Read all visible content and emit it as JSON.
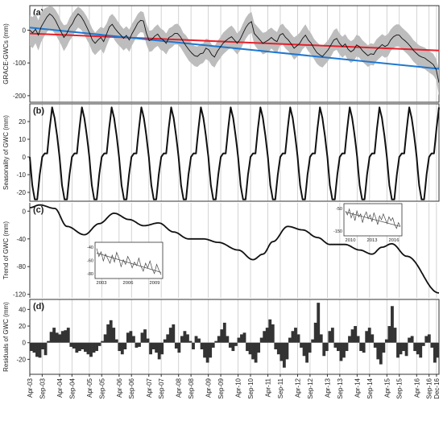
{
  "colors": {
    "grid": "#c8c8c8",
    "frame": "#333333",
    "ci_band": "#bdbdbd",
    "observed": "#111111",
    "red_trend": "#e8202a",
    "blue_trend": "#1f78d1",
    "bars": "#333333"
  },
  "x_axis": {
    "tick_labels": [
      "Apr-03",
      "Sep-03",
      "Apr-04",
      "Sep-04",
      "Apr-05",
      "Sep-05",
      "Apr-06",
      "Sep-06",
      "Apr-07",
      "Sep-07",
      "Apr-08",
      "Sep-08",
      "Apr-09",
      "Sep-09",
      "Apr-10",
      "Sep-10",
      "Apr-11",
      "Sep-11",
      "Apr-12",
      "Sep-12",
      "Apr-13",
      "Sep-13",
      "Apr-14",
      "Sep-14",
      "Apr-15",
      "Sep-15",
      "Apr-16",
      "Sep-16",
      "Dec-16"
    ]
  },
  "chart_data": [
    {
      "panel": "(a)",
      "type": "line",
      "ylabel": "GRACE-GWCs (mm)",
      "ylim": [
        -220,
        75
      ],
      "yticks": [
        0,
        -100,
        -200
      ],
      "series": [
        {
          "role": "observed",
          "values": [
            0,
            -8,
            3,
            -15,
            10,
            25,
            40,
            50,
            43,
            30,
            12,
            -5,
            -22,
            -10,
            8,
            20,
            38,
            50,
            42,
            28,
            10,
            -8,
            -30,
            -40,
            -30,
            -22,
            -35,
            -12,
            10,
            18,
            5,
            -6,
            -15,
            -25,
            -16,
            -30,
            -10,
            5,
            22,
            30,
            28,
            -8,
            -32,
            -28,
            -18,
            -12,
            -24,
            -30,
            -40,
            -22,
            -18,
            -10,
            -10,
            -20,
            -35,
            -48,
            -60,
            -70,
            -78,
            -80,
            -72,
            -70,
            -55,
            -60,
            -75,
            -82,
            -65,
            -52,
            -40,
            -32,
            -25,
            -20,
            -30,
            -40,
            -28,
            -10,
            8,
            20,
            26,
            -10,
            -20,
            -30,
            -40,
            -35,
            -30,
            -22,
            -30,
            -35,
            -15,
            -10,
            -22,
            -30,
            -42,
            -55,
            -48,
            -40,
            -25,
            -15,
            -30,
            -40,
            -55,
            -68,
            -75,
            -80,
            -70,
            -60,
            -45,
            -30,
            -25,
            -40,
            -50,
            -42,
            -58,
            -66,
            -60,
            -45,
            -50,
            -62,
            -70,
            -78,
            -72,
            -74,
            -60,
            -52,
            -44,
            -50,
            -45,
            -30,
            -20,
            -15,
            -15,
            -25,
            -32,
            -40,
            -50,
            -62,
            -70,
            -78,
            -82,
            -85,
            -92,
            -98,
            -105,
            -120,
            -160
          ]
        },
        {
          "role": "ci_upper",
          "values": [
            45,
            40,
            52,
            30,
            55,
            65,
            70,
            73,
            72,
            62,
            48,
            28,
            15,
            18,
            38,
            52,
            63,
            72,
            66,
            56,
            42,
            24,
            5,
            -8,
            2,
            10,
            6,
            20,
            42,
            50,
            40,
            26,
            14,
            4,
            12,
            2,
            20,
            34,
            50,
            58,
            55,
            22,
            -2,
            0,
            10,
            18,
            6,
            0,
            -10,
            6,
            10,
            18,
            20,
            10,
            -8,
            -16,
            -30,
            -40,
            -48,
            -50,
            -42,
            -40,
            -26,
            -28,
            -44,
            -50,
            -34,
            -22,
            -8,
            0,
            8,
            14,
            4,
            -10,
            0,
            20,
            38,
            50,
            56,
            22,
            12,
            2,
            -8,
            -6,
            2,
            8,
            0,
            -6,
            14,
            20,
            8,
            0,
            -12,
            -22,
            -16,
            -8,
            6,
            18,
            2,
            -10,
            -26,
            -36,
            -44,
            -48,
            -40,
            -30,
            -16,
            0,
            6,
            -10,
            -20,
            -12,
            -26,
            -34,
            -28,
            -14,
            -18,
            -30,
            -38,
            -46,
            -40,
            -42,
            -28,
            -20,
            -12,
            -18,
            -12,
            2,
            12,
            18,
            18,
            8,
            0,
            -8,
            -18,
            -30,
            -38,
            -46,
            -50,
            -53,
            -60,
            -66,
            -72,
            -88,
            -120
          ]
        },
        {
          "role": "ci_lower",
          "values": [
            -48,
            -55,
            -40,
            -62,
            -36,
            -20,
            -6,
            4,
            -2,
            -12,
            -28,
            -44,
            -64,
            -50,
            -32,
            -20,
            -4,
            8,
            2,
            -10,
            -28,
            -44,
            -66,
            -76,
            -66,
            -58,
            -72,
            -48,
            -26,
            -18,
            -32,
            -44,
            -52,
            -62,
            -54,
            -66,
            -46,
            -30,
            -14,
            -6,
            -8,
            -42,
            -66,
            -64,
            -54,
            -48,
            -60,
            -64,
            -74,
            -58,
            -52,
            -44,
            -44,
            -52,
            -66,
            -80,
            -94,
            -102,
            -110,
            -112,
            -104,
            -100,
            -88,
            -94,
            -108,
            -114,
            -98,
            -86,
            -74,
            -66,
            -58,
            -54,
            -64,
            -74,
            -62,
            -44,
            -26,
            -14,
            -8,
            -44,
            -56,
            -64,
            -74,
            -70,
            -66,
            -56,
            -64,
            -70,
            -48,
            -44,
            -56,
            -64,
            -76,
            -90,
            -82,
            -74,
            -58,
            -50,
            -64,
            -74,
            -88,
            -102,
            -110,
            -114,
            -104,
            -94,
            -80,
            -64,
            -60,
            -74,
            -84,
            -76,
            -92,
            -100,
            -94,
            -80,
            -84,
            -96,
            -104,
            -112,
            -106,
            -108,
            -94,
            -86,
            -78,
            -84,
            -80,
            -64,
            -54,
            -50,
            -50,
            -58,
            -66,
            -74,
            -84,
            -96,
            -104,
            -112,
            -116,
            -119,
            -126,
            -132,
            -138,
            -152,
            -200
          ]
        },
        {
          "role": "red_trend",
          "from": -10,
          "to": -62
        },
        {
          "role": "blue_trend",
          "from": 8,
          "to": -118
        }
      ]
    },
    {
      "panel": "(b)",
      "type": "line",
      "ylabel": "Seasonality of GWC (mm)",
      "ylim": [
        -25,
        30
      ],
      "yticks": [
        20,
        10,
        0,
        -10,
        -20
      ],
      "period_months": 12,
      "start_month_index": 3,
      "cycle_shape": [
        28,
        22,
        12,
        0,
        -16,
        -24,
        -24,
        -10,
        0,
        2,
        2,
        16
      ]
    },
    {
      "panel": "(c)",
      "type": "line",
      "ylabel": "Trend of GWC (mm)",
      "ylim": [
        -125,
        12
      ],
      "yticks": [
        0,
        -40,
        -80,
        -120
      ],
      "anchors_month": [
        0,
        4,
        10,
        15,
        22,
        28,
        34,
        40,
        46,
        52,
        58,
        64,
        70,
        76,
        84,
        90,
        94,
        98,
        104,
        110,
        116,
        121,
        127,
        133,
        138,
        142,
        146,
        152
      ],
      "anchors_value": [
        5,
        9,
        4,
        -22,
        -34,
        -18,
        -3,
        -12,
        -21,
        -17,
        -30,
        -40,
        -40,
        -45,
        -56,
        -70,
        -62,
        -44,
        -22,
        -27,
        -38,
        -48,
        -48,
        -56,
        -62,
        -52,
        -47,
        -65
      ],
      "end_value": -118,
      "insets": [
        {
          "x_ticks": [
            "2003",
            "2006",
            "2009"
          ],
          "y_ticks": [
            "-40",
            "-60",
            "-80"
          ],
          "ylim": [
            -88,
            -30
          ],
          "values": [
            -38,
            -52,
            -44,
            -60,
            -48,
            -56,
            -64,
            -50,
            -62,
            -45,
            -55,
            -70,
            -58,
            -66,
            -52,
            -60,
            -72,
            -62,
            -68,
            -55,
            -70,
            -78,
            -64,
            -72,
            -60,
            -74,
            -82,
            -66,
            -76,
            -84
          ],
          "trend": [
            -46,
            -80
          ]
        },
        {
          "x_ticks": [
            "2010",
            "2013",
            "2016"
          ],
          "y_ticks": [
            "-50",
            "-150"
          ],
          "ylim": [
            -180,
            -30
          ],
          "values": [
            -60,
            -80,
            -50,
            -95,
            -70,
            -110,
            -60,
            -90,
            -75,
            -120,
            -85,
            -65,
            -100,
            -80,
            -115,
            -70,
            -95,
            -130,
            -85,
            -105,
            -75,
            -100,
            -125,
            -90,
            -110,
            -95,
            -130,
            -150,
            -120,
            -140
          ],
          "trend": [
            -65,
            -140
          ]
        }
      ]
    },
    {
      "panel": "(d)",
      "type": "bar",
      "ylabel": "Residuals of GWC (mm)",
      "ylim": [
        -38,
        52
      ],
      "yticks": [
        40,
        20,
        0,
        -20
      ],
      "values": [
        -10,
        -12,
        -17,
        -18,
        -8,
        -15,
        2,
        13,
        18,
        12,
        10,
        14,
        15,
        18,
        -5,
        -7,
        -12,
        -10,
        -8,
        -11,
        -14,
        -17,
        -12,
        -10,
        -4,
        2,
        10,
        22,
        27,
        18,
        4,
        -10,
        -14,
        -8,
        12,
        14,
        8,
        -6,
        -5,
        12,
        16,
        5,
        -14,
        -8,
        -12,
        -20,
        -14,
        4,
        10,
        18,
        22,
        -7,
        -12,
        8,
        14,
        10,
        2,
        -8,
        8,
        5,
        -8,
        -18,
        -24,
        -18,
        -6,
        2,
        8,
        16,
        24,
        8,
        -6,
        -10,
        -4,
        6,
        10,
        12,
        -10,
        -14,
        -20,
        -24,
        -12,
        6,
        14,
        18,
        28,
        22,
        -8,
        -14,
        -22,
        -30,
        -20,
        6,
        14,
        18,
        10,
        -6,
        -16,
        -24,
        -12,
        4,
        24,
        48,
        10,
        -16,
        -10,
        14,
        18,
        -6,
        -10,
        -22,
        -18,
        -10,
        8,
        16,
        20,
        8,
        -10,
        -12,
        14,
        18,
        10,
        -6,
        -20,
        -26,
        -12,
        4,
        20,
        44,
        18,
        -18,
        -14,
        -10,
        -16,
        6,
        8,
        -10,
        -14,
        -18,
        -4,
        8,
        10,
        -6,
        -24,
        -18
      ]
    }
  ]
}
